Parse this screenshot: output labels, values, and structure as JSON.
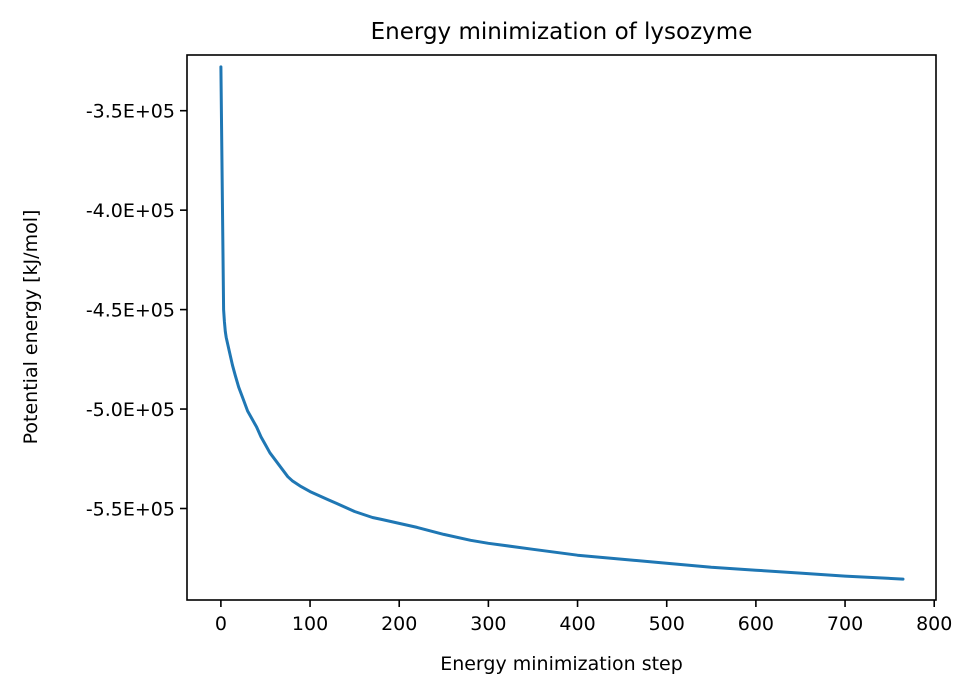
{
  "chart_data": {
    "type": "line",
    "title": "Energy minimization of lysozyme",
    "xlabel": "Energy minimization step",
    "ylabel": "Potential energy [kJ/mol]",
    "xlim": [
      -38,
      802
    ],
    "ylim": [
      -596000,
      -322000
    ],
    "xticks": [
      0,
      100,
      200,
      300,
      400,
      500,
      600,
      700,
      800
    ],
    "xtick_labels": [
      "0",
      "100",
      "200",
      "300",
      "400",
      "500",
      "600",
      "700",
      "800"
    ],
    "yticks": [
      -350000,
      -400000,
      -450000,
      -500000,
      -550000
    ],
    "ytick_labels": [
      "-3.5E+05",
      "-4.0E+05",
      "-4.5E+05",
      "-5.0E+05",
      "-5.5E+05"
    ],
    "grid": false,
    "line_color": "#1f77b4",
    "series": [
      {
        "x": [
          0,
          3,
          4,
          5,
          6,
          8,
          10,
          13,
          16,
          20,
          25,
          30,
          35,
          40,
          45,
          50,
          55,
          60,
          65,
          70,
          75,
          80,
          90,
          100,
          110,
          120,
          130,
          140,
          150,
          160,
          170,
          180,
          200,
          220,
          250,
          280,
          300,
          350,
          400,
          450,
          500,
          550,
          600,
          650,
          700,
          765
        ],
        "y": [
          -328000,
          -450000,
          -456000,
          -461000,
          -464000,
          -468000,
          -472000,
          -478000,
          -483000,
          -489000,
          -495000,
          -501000,
          -505000,
          -509000,
          -514000,
          -518000,
          -522000,
          -525000,
          -528000,
          -531000,
          -534000,
          -536000,
          -539000,
          -541500,
          -543500,
          -545500,
          -547500,
          -549500,
          -551500,
          -553000,
          -554500,
          -555500,
          -557500,
          -559500,
          -563000,
          -566000,
          -567500,
          -570500,
          -573500,
          -575500,
          -577500,
          -579500,
          -581000,
          -582500,
          -584000,
          -585500
        ]
      }
    ]
  }
}
